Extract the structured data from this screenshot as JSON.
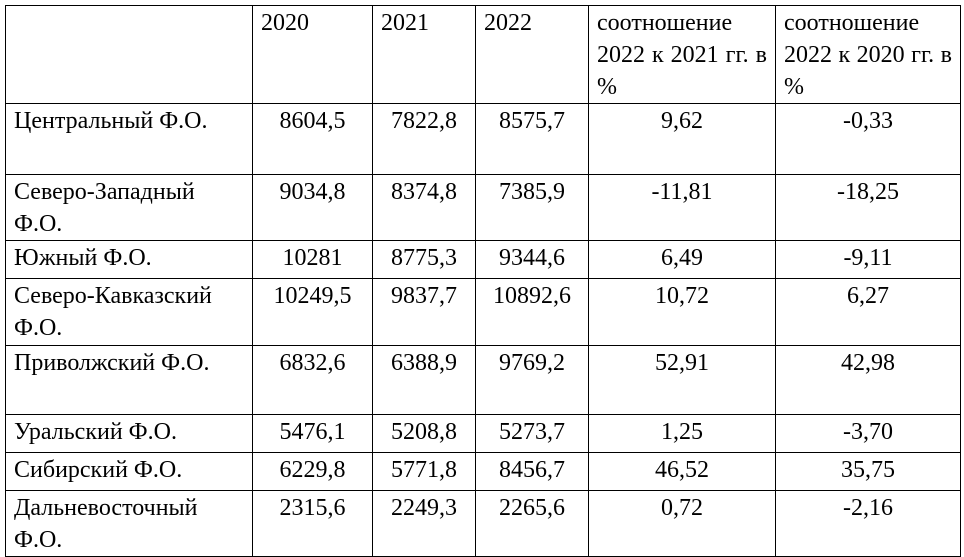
{
  "table": {
    "header": [
      "",
      "2020",
      "2021",
      "2022",
      "соотношение 2022 к 2021 гг. в %",
      "соотношение 2022 к 2020 гг. в %"
    ],
    "rows": [
      [
        "Центральный Ф.О.",
        "8604,5",
        "7822,8",
        "8575,7",
        "9,62",
        "-0,33"
      ],
      [
        "Северо-Западный Ф.О.",
        "9034,8",
        "8374,8",
        "7385,9",
        "-11,81",
        "-18,25"
      ],
      [
        "Южный Ф.О.",
        "10281",
        "8775,3",
        "9344,6",
        "6,49",
        "-9,11"
      ],
      [
        "Северо-Кавказский Ф.О.",
        "10249,5",
        "9837,7",
        "10892,6",
        "10,72",
        "6,27"
      ],
      [
        "Приволжский Ф.О.",
        "6832,6",
        "6388,9",
        "9769,2",
        "52,91",
        "42,98"
      ],
      [
        "Уральский Ф.О.",
        "5476,1",
        "5208,8",
        "5273,7",
        "1,25",
        "-3,70"
      ],
      [
        "Сибирский Ф.О.",
        "6229,8",
        "5771,8",
        "8456,7",
        "46,52",
        "35,75"
      ],
      [
        "Дальневосточный Ф.О.",
        "2315,6",
        "2249,3",
        "2265,6",
        "0,72",
        "-2,16"
      ]
    ]
  }
}
